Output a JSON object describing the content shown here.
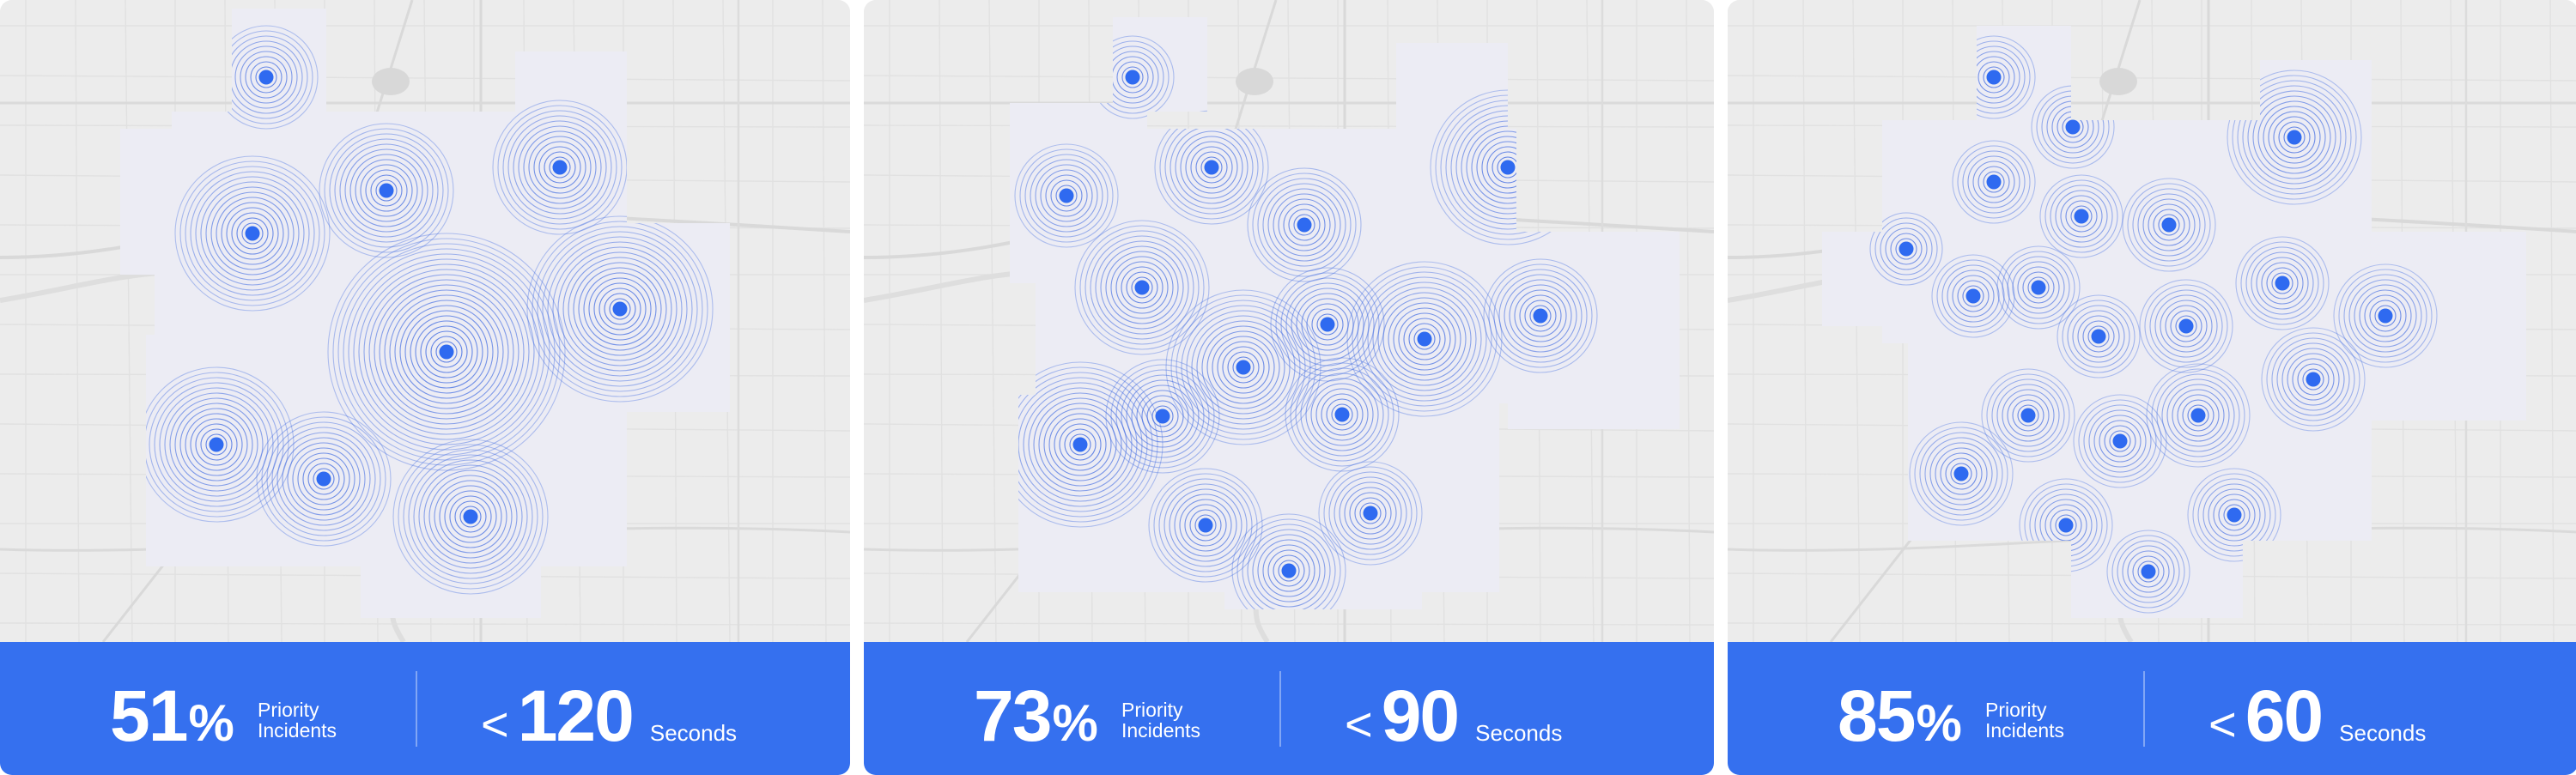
{
  "colors": {
    "accent": "#3570ef",
    "map_background": "#ececec",
    "ring_stroke": "#3a66e0",
    "marker_fill": "#2f6af0",
    "stats_text": "#ffffff"
  },
  "panels": [
    {
      "percent": "51",
      "percent_sign": "%",
      "percent_label": "Priority\nIncidents",
      "time_prefix": "<",
      "time_value": "120",
      "time_unit": "Seconds"
    },
    {
      "percent": "73",
      "percent_sign": "%",
      "percent_label": "Priority\nIncidents",
      "time_prefix": "<",
      "time_value": "90",
      "time_unit": "Seconds"
    },
    {
      "percent": "85",
      "percent_sign": "%",
      "percent_label": "Priority\nIncidents",
      "time_prefix": "<",
      "time_value": "60",
      "time_unit": "Seconds"
    }
  ],
  "map_legend": {
    "marker_icon": "station-marker-icon",
    "coverage_icon": "coverage-rings-icon"
  }
}
